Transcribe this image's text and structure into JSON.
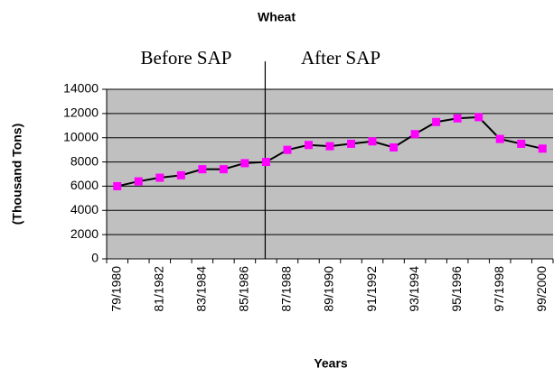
{
  "chart_data": {
    "type": "line",
    "title": "Wheat",
    "x_label": "Years",
    "y_label": "(Thousand Tons)",
    "annotations": [
      "Before SAP",
      "After SAP"
    ],
    "categories": [
      "79/1980",
      null,
      "81/1982",
      null,
      "83/1984",
      null,
      "85/1986",
      null,
      "87/1988",
      null,
      "89/1990",
      null,
      "91/1992",
      null,
      "93/1994",
      null,
      "95/1996",
      null,
      "97/1998",
      null,
      "99/2000"
    ],
    "series": [
      {
        "name": "Wheat",
        "color": "#ff00ff",
        "line_color": "#000000",
        "values": [
          6000,
          6400,
          6700,
          6900,
          7400,
          7400,
          7900,
          8000,
          9000,
          9400,
          9300,
          9500,
          9700,
          9200,
          10300,
          11300,
          11600,
          11700,
          9900,
          9500,
          9100
        ]
      }
    ],
    "ylim": [
      0,
      14000
    ],
    "yticks": [
      0,
      2000,
      4000,
      6000,
      8000,
      10000,
      12000,
      14000
    ],
    "grid": true,
    "plot_background": "#c0c0c0"
  }
}
